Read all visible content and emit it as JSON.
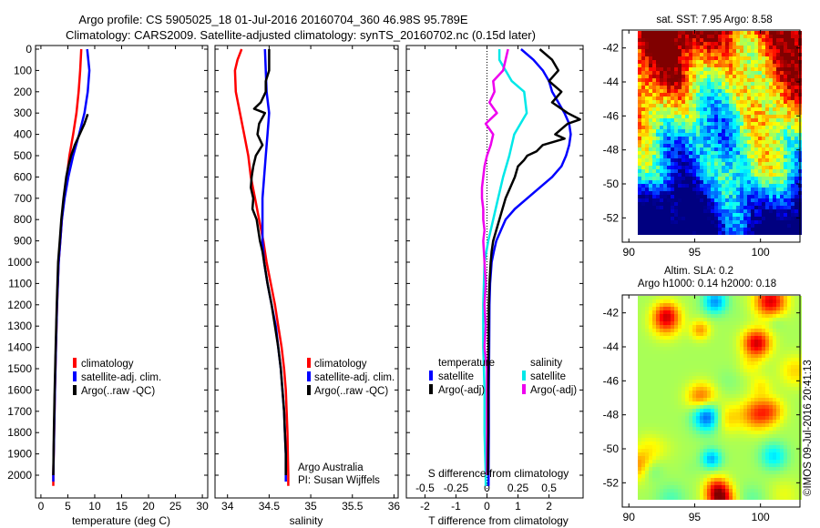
{
  "header": {
    "line1": "Argo profile: CS 5905025_18 01-Jul-2016 20160704_360 46.98S 95.789E",
    "line2": "Climatology: CARS2009. Satellite-adjusted climatology: synTS_20160702.nc (0.15d later)"
  },
  "panel1": {
    "xlabel": "temperature (deg C)",
    "xticks": [
      "0",
      "5",
      "10",
      "15",
      "20",
      "25",
      "30"
    ],
    "legend": [
      "climatology",
      "satellite-adj. clim.",
      "Argo(..raw -QC)"
    ]
  },
  "panel2": {
    "xlabel": "salinity",
    "xticks": [
      "34",
      "34.5",
      "35",
      "35.5",
      "36"
    ],
    "legend": [
      "climatology",
      "satellite-adj. clim.",
      "Argo(..raw -QC)"
    ],
    "credit1": "Argo Australia",
    "credit2": "PI: Susan Wijffels"
  },
  "panel3": {
    "xlabel": "T difference from climatology",
    "xlabel_top": "S difference from climatology",
    "xticks_t": [
      "-2",
      "-1",
      "0",
      "1",
      "2"
    ],
    "xticks_s": [
      "-0.5",
      "-0.25",
      "0",
      "0.25",
      "0.5"
    ],
    "legend_temp_title": "temperature",
    "legend_sal_title": "salinity",
    "legend_satellite": "satellite",
    "legend_argo": "Argo(-adj)"
  },
  "depth_ticks": [
    "0",
    "100",
    "200",
    "300",
    "400",
    "500",
    "600",
    "700",
    "800",
    "900",
    "1000",
    "1100",
    "1200",
    "1300",
    "1400",
    "1500",
    "1600",
    "1700",
    "1800",
    "1900",
    "2000"
  ],
  "map1": {
    "title": "sat. SST: 7.95 Argo: 8.58",
    "yticks": [
      "-42",
      "-44",
      "-46",
      "-48",
      "-50",
      "-52"
    ],
    "xticks": [
      "90",
      "95",
      "100"
    ]
  },
  "map2": {
    "title1": "Altim. SLA: 0.2",
    "title2": "Argo h1000: 0.14 h2000: 0.18",
    "yticks": [
      "-42",
      "-44",
      "-46",
      "-48",
      "-50",
      "-52"
    ],
    "xticks": [
      "90",
      "95",
      "100"
    ]
  },
  "credit_vertical": "©IMOS 09-Jul-2016 20:41:13",
  "colors": {
    "climatology": "#ff0000",
    "satellite": "#0000ff",
    "argo": "#000000",
    "sal_satellite": "#00e8e8",
    "sal_argo": "#ee00ee"
  },
  "chart_data": [
    {
      "type": "line",
      "panel": "temperature",
      "ylabel": "",
      "xlabel": "temperature (deg C)",
      "xlim": [
        -1,
        31
      ],
      "ylim": [
        2050,
        0
      ],
      "series": [
        {
          "name": "climatology",
          "depth": [
            0,
            100,
            200,
            300,
            400,
            500,
            600,
            700,
            800,
            900,
            1000,
            1200,
            1400,
            1600,
            1800,
            2000,
            2050
          ],
          "values": [
            7.5,
            7.3,
            7.0,
            6.6,
            6.0,
            5.3,
            4.8,
            4.3,
            3.9,
            3.6,
            3.3,
            3.0,
            2.8,
            2.6,
            2.45,
            2.3,
            2.3
          ]
        },
        {
          "name": "satellite-adj. clim.",
          "depth": [
            0,
            100,
            200,
            300,
            400,
            500,
            600,
            700,
            800,
            900,
            1000,
            1200,
            1400,
            1600,
            1800,
            2000,
            2030
          ],
          "values": [
            8.6,
            9.0,
            8.7,
            8.1,
            7.1,
            6.0,
            5.1,
            4.4,
            3.9,
            3.6,
            3.3,
            3.0,
            2.8,
            2.6,
            2.45,
            2.3,
            2.3
          ]
        },
        {
          "name": "Argo(..raw -QC)",
          "depth": [
            305,
            350,
            400,
            450,
            500,
            550,
            600,
            700,
            800,
            900,
            1000,
            1200,
            1400,
            1600,
            1800,
            2000
          ],
          "values": [
            8.7,
            8.1,
            7.2,
            6.3,
            5.6,
            5.1,
            4.7,
            4.2,
            3.8,
            3.5,
            3.2,
            2.95,
            2.75,
            2.55,
            2.4,
            2.3
          ]
        }
      ]
    },
    {
      "type": "line",
      "panel": "salinity",
      "xlabel": "salinity",
      "xlim": [
        33.85,
        36.05
      ],
      "ylim": [
        2050,
        0
      ],
      "series": [
        {
          "name": "climatology",
          "depth": [
            0,
            50,
            100,
            200,
            300,
            400,
            500,
            600,
            700,
            800,
            900,
            1000,
            1100,
            1200,
            1300,
            1400,
            1500,
            1600,
            1700,
            1800,
            1900,
            2000,
            2050
          ],
          "values": [
            34.17,
            34.12,
            34.09,
            34.1,
            34.15,
            34.2,
            34.25,
            34.28,
            34.33,
            34.38,
            34.43,
            34.47,
            34.52,
            34.57,
            34.61,
            34.65,
            34.68,
            34.7,
            34.71,
            34.72,
            34.725,
            34.73,
            34.73
          ]
        },
        {
          "name": "satellite-adj. clim.",
          "depth": [
            0,
            100,
            200,
            300,
            400,
            500,
            600,
            700,
            800,
            900,
            1000,
            1100,
            1200,
            1300,
            1400,
            1500,
            1600,
            1700,
            1800,
            1900,
            2000,
            2030
          ],
          "values": [
            34.45,
            34.46,
            34.47,
            34.5,
            34.48,
            34.46,
            34.44,
            34.42,
            34.42,
            34.42,
            34.44,
            34.48,
            34.53,
            34.58,
            34.61,
            34.64,
            34.66,
            34.68,
            34.69,
            34.7,
            34.7,
            34.7
          ]
        },
        {
          "name": "Argo(..raw -QC)",
          "depth": [
            0,
            100,
            150,
            200,
            250,
            280,
            300,
            350,
            400,
            450,
            500,
            550,
            600,
            650,
            700,
            750,
            800,
            850,
            900,
            950,
            1000,
            1100,
            1200,
            1300,
            1400,
            1500,
            1600,
            1700,
            1800,
            1900,
            2000
          ],
          "values": [
            34.5,
            34.5,
            34.46,
            34.46,
            34.4,
            34.32,
            34.45,
            34.38,
            34.36,
            34.42,
            34.34,
            34.31,
            34.29,
            34.28,
            34.31,
            34.3,
            34.35,
            34.37,
            34.39,
            34.42,
            34.44,
            34.48,
            34.53,
            34.57,
            34.61,
            34.64,
            34.66,
            34.68,
            34.69,
            34.7,
            34.7
          ]
        }
      ]
    },
    {
      "type": "line",
      "panel": "difference",
      "xlabel": "T difference from climatology",
      "xlabel_top": "S difference from climatology",
      "xlim_T": [
        -2.6,
        3.1
      ],
      "xlim_S": [
        -0.65,
        0.775
      ],
      "ylim": [
        2050,
        0
      ],
      "series": [
        {
          "name": "temperature satellite",
          "units": "deg C",
          "depth": [
            0,
            50,
            100,
            150,
            200,
            250,
            300,
            350,
            400,
            450,
            500,
            550,
            600,
            650,
            700,
            750,
            800,
            850,
            900,
            950,
            1000,
            1100,
            1200,
            1400,
            1600,
            1800,
            2000,
            2050
          ],
          "values": [
            1.1,
            1.5,
            1.8,
            2.0,
            2.1,
            2.3,
            2.5,
            2.65,
            2.7,
            2.65,
            2.55,
            2.4,
            2.1,
            1.7,
            1.3,
            0.9,
            0.6,
            0.45,
            0.3,
            0.22,
            0.15,
            0.1,
            0.08,
            0.07,
            0.06,
            0.06,
            0.05,
            0.05
          ]
        },
        {
          "name": "temperature Argo(-adj)",
          "units": "deg C",
          "depth": [
            0,
            50,
            100,
            150,
            200,
            250,
            300,
            330,
            350,
            400,
            420,
            450,
            480,
            500,
            520,
            550,
            600,
            650,
            700,
            750,
            800,
            850,
            900,
            950,
            1000,
            1100,
            1200,
            1400,
            1600,
            1800,
            2000
          ],
          "values": [
            1.7,
            2.1,
            2.3,
            2.0,
            2.4,
            2.1,
            2.6,
            3.0,
            2.6,
            2.2,
            2.5,
            1.8,
            1.6,
            1.3,
            1.2,
            1.0,
            0.9,
            0.75,
            0.6,
            0.5,
            0.4,
            0.3,
            0.2,
            0.15,
            0.12,
            0.08,
            0.06,
            0.05,
            0.04,
            0.04,
            0.03
          ]
        },
        {
          "name": "salinity satellite",
          "units": "",
          "depth": [
            0,
            50,
            100,
            150,
            200,
            300,
            400,
            500,
            600,
            700,
            800,
            900,
            1000,
            1200,
            1400,
            1600,
            1800,
            2000,
            2050
          ],
          "values": [
            0.1,
            0.1,
            0.15,
            0.2,
            0.3,
            0.32,
            0.22,
            0.18,
            0.13,
            0.09,
            0.05,
            0.01,
            -0.02,
            -0.03,
            -0.03,
            -0.02,
            -0.02,
            -0.01,
            -0.01
          ]
        },
        {
          "name": "salinity Argo(-adj)",
          "units": "",
          "depth": [
            0,
            100,
            150,
            200,
            250,
            300,
            350,
            400,
            450,
            500,
            550,
            600,
            650,
            700,
            750,
            800,
            850,
            900,
            1000,
            1100,
            1200,
            1300,
            1400,
            1500,
            1600,
            1700,
            1800,
            1900,
            2000
          ],
          "values": [
            0.17,
            0.13,
            0.05,
            0.06,
            0.02,
            0.08,
            -0.01,
            0.05,
            0.03,
            0.0,
            -0.02,
            -0.03,
            -0.04,
            -0.04,
            -0.03,
            -0.03,
            -0.02,
            -0.03,
            -0.02,
            -0.01,
            -0.02,
            -0.01,
            -0.02,
            0.0,
            0.0,
            0.0,
            0.0,
            0.0,
            0.0
          ]
        }
      ]
    },
    {
      "type": "heatmap",
      "panel": "sat. SST map",
      "title": "sat. SST: 7.95 Argo: 8.58",
      "xlim": [
        89.5,
        103
      ],
      "ylim": [
        -53,
        -41
      ]
    },
    {
      "type": "heatmap",
      "panel": "Altim. SLA map",
      "title": "Altim. SLA: 0.2",
      "xlim": [
        89.5,
        103
      ],
      "ylim": [
        -53,
        -41
      ]
    }
  ]
}
